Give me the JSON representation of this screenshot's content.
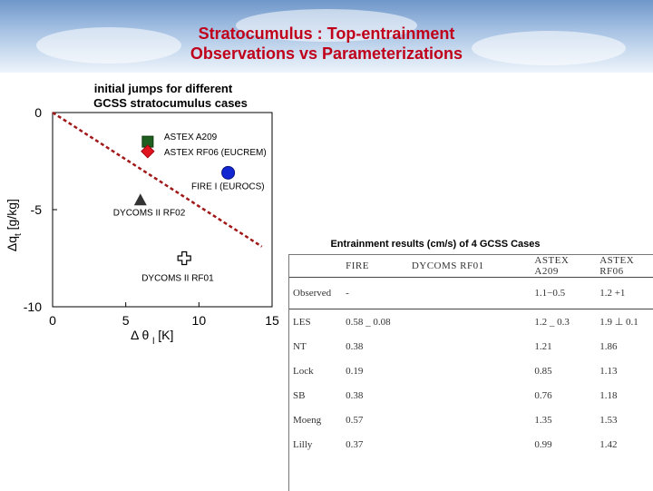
{
  "header": {
    "title_line1": "Stratocumulus : Top-entrainment",
    "title_line2": "Observations vs Parameterizations"
  },
  "chart_data": {
    "type": "scatter",
    "title": "initial jumps for different GCSS stratocumulus cases",
    "xlabel": "Δ θ",
    "xlabel_sub": "l",
    "xlabel_unit": "[K]",
    "ylabel": "Δq",
    "ylabel_sub": "t",
    "ylabel_unit": "[g/kg]",
    "xlim": [
      0,
      15
    ],
    "ylim": [
      -10,
      0
    ],
    "xticks": [
      0,
      5,
      10,
      15
    ],
    "yticks": [
      0,
      -5,
      -10
    ],
    "points": [
      {
        "label": "ASTEX A209",
        "x": 6.5,
        "y": -1.5,
        "marker": "square",
        "color": "#1e5e1e"
      },
      {
        "label": "ASTEX RF06 (EUCREM)",
        "x": 6.5,
        "y": -2.0,
        "marker": "diamond",
        "color": "#e0141e"
      },
      {
        "label": "FIRE I (EUROCS)",
        "x": 12.0,
        "y": -3.1,
        "marker": "circle",
        "color": "#1226d2"
      },
      {
        "label": "DYCOMS II RF02",
        "x": 6.0,
        "y": -4.5,
        "marker": "triangle",
        "color": "#333333"
      },
      {
        "label": "DYCOMS II RF01",
        "x": 9.0,
        "y": -7.5,
        "marker": "open-cross",
        "color": "#000000"
      }
    ],
    "stability_line": {
      "x": [
        0,
        14.3
      ],
      "y": [
        0,
        -6.9
      ],
      "style": "dashed",
      "color": "#a01818"
    },
    "grid": false
  },
  "table": {
    "caption": "Entrainment results (cm/s) of 4 GCSS Cases",
    "columns": [
      "",
      "FIRE",
      "DYCOMS RF01",
      "ASTEX A209",
      "ASTEX RF06"
    ],
    "rows": [
      [
        "Observed",
        "-",
        "",
        "1.1−0.5",
        "1.2 +1"
      ],
      [
        "LES",
        "0.58 _ 0.08",
        "",
        "1.2 _ 0.3",
        "1.9 ⊥ 0.1"
      ],
      [
        "NT",
        "0.38",
        "",
        "1.21",
        "1.86"
      ],
      [
        "Lock",
        "0.19",
        "",
        "0.85",
        "1.13"
      ],
      [
        "SB",
        "0.38",
        "",
        "0.76",
        "1.18"
      ],
      [
        "Moeng",
        "0.57",
        "",
        "1.35",
        "1.53"
      ],
      [
        "Lilly",
        "0.37",
        "",
        "0.99",
        "1.42"
      ]
    ]
  }
}
